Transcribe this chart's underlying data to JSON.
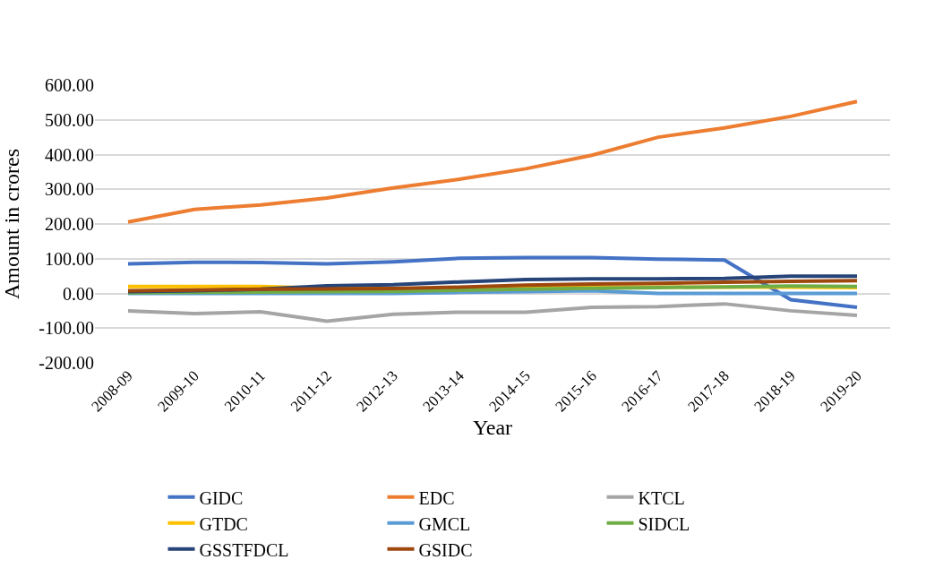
{
  "chart_data": {
    "type": "line",
    "xlabel": "Year",
    "ylabel": "Amount in crores",
    "categories": [
      "2008-09",
      "2009-10",
      "2010-11",
      "2011-12",
      "2012-13",
      "2013-14",
      "2014-15",
      "2015-16",
      "2016-17",
      "2017-18",
      "2018-19",
      "2019-20"
    ],
    "series": [
      {
        "name": "GIDC",
        "color": "#4472c4",
        "values": [
          85,
          90,
          89,
          85,
          91,
          101,
          103,
          103,
          99,
          96,
          -18,
          -40
        ]
      },
      {
        "name": "EDC",
        "color": "#ed7d31",
        "values": [
          206,
          242,
          255,
          275,
          304,
          329,
          359,
          398,
          450,
          477,
          510,
          553
        ]
      },
      {
        "name": "KTCL",
        "color": "#a5a5a5",
        "values": [
          -50,
          -58,
          -53,
          -80,
          -60,
          -54,
          -54,
          -40,
          -38,
          -30,
          -50,
          -63
        ]
      },
      {
        "name": "GTDC",
        "color": "#ffc000",
        "values": [
          20,
          20,
          20,
          15,
          14,
          15,
          17,
          18,
          18,
          18,
          18,
          17
        ]
      },
      {
        "name": "GMCL",
        "color": "#5b9bd5",
        "values": [
          0,
          0,
          0,
          0,
          0,
          3,
          5,
          8,
          0,
          0,
          0,
          0
        ]
      },
      {
        "name": "SIDCL",
        "color": "#70ad47",
        "values": [
          2,
          3,
          4,
          5,
          6,
          9,
          12,
          15,
          17,
          19,
          21,
          20
        ]
      },
      {
        "name": "GSSTFDCL",
        "color": "#264478",
        "values": [
          5,
          8,
          12,
          22,
          25,
          33,
          40,
          42,
          42,
          43,
          50,
          50
        ]
      },
      {
        "name": "GSIDC",
        "color": "#9e480e",
        "values": [
          8,
          10,
          12,
          13,
          14,
          18,
          24,
          27,
          29,
          32,
          35,
          37
        ]
      }
    ],
    "ylim": [
      -200,
      600
    ],
    "yticks": [
      {
        "value": -200,
        "label": "-200.00"
      },
      {
        "value": -100,
        "label": "-100.00"
      },
      {
        "value": 0,
        "label": "0.00"
      },
      {
        "value": 100,
        "label": "100.00"
      },
      {
        "value": 200,
        "label": "200.00"
      },
      {
        "value": 300,
        "label": "300.00"
      },
      {
        "value": 400,
        "label": "400.00"
      },
      {
        "value": 500,
        "label": "500.00"
      },
      {
        "value": 600,
        "label": "600.00"
      }
    ],
    "grid": "y",
    "legend": "bottom",
    "marker": "none",
    "line_style": "solid"
  }
}
